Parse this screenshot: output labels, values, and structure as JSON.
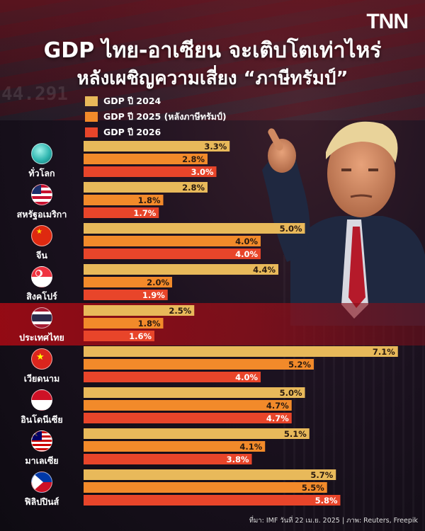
{
  "brand": "TNN",
  "title_line1": "GDP ไทย-อาเซียน จะเติบโตเท่าไหร่",
  "title_line2": "หลังเผชิญความเสี่ยง “ภาษีทรัมป์”",
  "footer": "ที่มา: IMF วันที่ 22 เม.ย. 2025 | ภาพ: Reuters, Freepik",
  "colors": {
    "gdp2024": "#e8b95a",
    "gdp2025": "#f28a2a",
    "gdp2026": "#e8452a",
    "highlight": "#b5121b"
  },
  "chart_data": {
    "type": "bar",
    "orientation": "horizontal",
    "unit": "%",
    "categories": [
      "ทั่วโลก",
      "สหรัฐอเมริกา",
      "จีน",
      "สิงคโปร์",
      "ประเทศไทย",
      "เวียดนาม",
      "อินโดนีเซีย",
      "มาเลเซีย",
      "ฟิลิปปินส์"
    ],
    "series": [
      {
        "name": "GDP ปี 2024",
        "values": [
          3.3,
          2.8,
          5.0,
          4.4,
          2.5,
          7.1,
          5.0,
          5.1,
          5.7
        ]
      },
      {
        "name": "GDP ปี 2025 (หลังภาษีทรัมป์)",
        "values": [
          2.8,
          1.8,
          4.0,
          2.0,
          1.8,
          5.2,
          4.7,
          4.1,
          5.5
        ]
      },
      {
        "name": "GDP ปี 2026",
        "values": [
          3.0,
          1.7,
          4.0,
          1.9,
          1.6,
          4.0,
          4.7,
          3.8,
          5.8
        ]
      }
    ],
    "value_labels": [
      [
        "3.3%",
        "2.8%",
        "3.0%"
      ],
      [
        "2.8%",
        "1.8%",
        "1.7%"
      ],
      [
        "5.0%",
        "4.0%",
        "4.0%"
      ],
      [
        "4.4%",
        "2.0%",
        "1.9%"
      ],
      [
        "2.5%",
        "1.8%",
        "1.6%"
      ],
      [
        "7.1%",
        "5.2%",
        "4.0%"
      ],
      [
        "5.0%",
        "4.7%",
        "4.7%"
      ],
      [
        "5.1%",
        "4.1%",
        "3.8%"
      ],
      [
        "5.7%",
        "5.5%",
        "5.8%"
      ]
    ],
    "highlight_category": "ประเทศไทย",
    "legend_position": "top-left",
    "xlim": [
      0,
      7.2
    ]
  }
}
